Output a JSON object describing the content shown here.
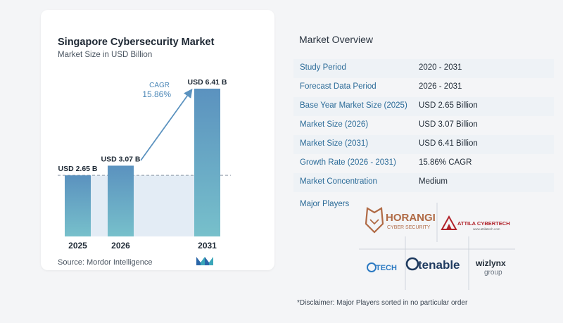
{
  "chart_data": {
    "type": "bar",
    "title": "Singapore Cybersecurity Market",
    "subtitle": "Market Size in USD Billion",
    "categories": [
      "2025",
      "2026",
      "2031"
    ],
    "values": [
      2.65,
      3.07,
      6.41
    ],
    "value_labels": [
      "USD 2.65 B",
      "USD 3.07 B",
      "USD 6.41 B"
    ],
    "cagr_label": "CAGR",
    "cagr_value": "15.86%",
    "ylim": [
      0,
      6.41
    ],
    "grid": false,
    "colors": {
      "bar_top": "#5b92bf",
      "bar_bottom": "#77c0cb",
      "area": "#e3ecf5",
      "arrow": "#5b92bf",
      "dash": "#8d99a6"
    }
  },
  "source": "Source:  Mordor Intelligence",
  "overview": {
    "title": "Market Overview",
    "rows": [
      {
        "key": "Study Period",
        "value": "2020 - 2031"
      },
      {
        "key": "Forecast Data Period",
        "value": "2026 - 2031"
      },
      {
        "key": "Base Year Market Size (2025)",
        "value": "USD 2.65 Billion"
      },
      {
        "key": "Market Size (2026)",
        "value": "USD 3.07 Billion"
      },
      {
        "key": "Market Size (2031)",
        "value": "USD 6.41 Billion"
      },
      {
        "key": "Growth Rate (2026 - 2031)",
        "value": "15.86% CAGR"
      },
      {
        "key": "Market Concentration",
        "value": "Medium"
      }
    ]
  },
  "major_players": {
    "title": "Major Players",
    "logos": [
      {
        "name": "HORANGI",
        "tagline": "CYBER SECURITY",
        "color": "#b06a45"
      },
      {
        "name": "ATTILA CYBERTECH",
        "tagline": "www.attilatech.com",
        "color": "#b0222a"
      },
      {
        "name": "TECH",
        "color": "#2a79c2"
      },
      {
        "name": "tenable",
        "color": "#1e3a5f"
      },
      {
        "name": "wizlynx",
        "tagline": "group",
        "color": "#1f2a36"
      }
    ]
  },
  "disclaimer": "*Disclaimer: Major Players sorted in no particular order"
}
